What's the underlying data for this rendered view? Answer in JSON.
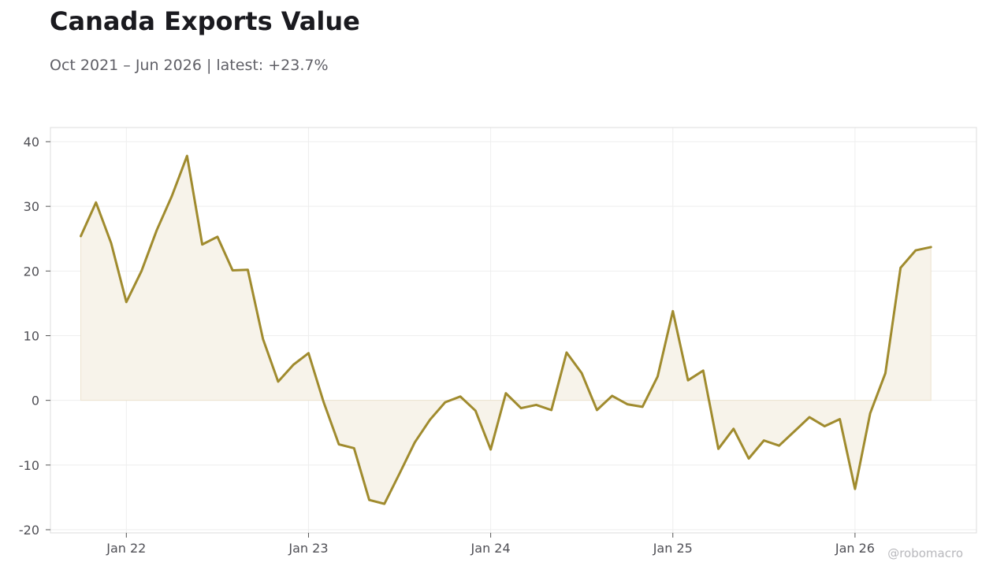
{
  "title": "Canada Exports Value",
  "subtitle": "Oct 2021 – Jun 2026 | latest: +23.7%",
  "watermark": "@robomacro",
  "colors": {
    "line": "#a08b2e",
    "fill": "#f7f3ea",
    "grid": "#eeeeee",
    "frame": "#dddddd",
    "tick_text": "#4f4f55"
  },
  "chart_data": {
    "type": "area",
    "title": "Canada Exports Value",
    "subtitle": "Oct 2021 – Jun 2026 | latest: +23.7%",
    "xlabel": "",
    "ylabel": "",
    "grid": true,
    "ylim": [
      -20,
      40
    ],
    "xlim": [
      "2021-08",
      "2026-09"
    ],
    "y_ticks": [
      -20,
      -10,
      0,
      10,
      20,
      30,
      40
    ],
    "x_ticks": [
      {
        "date": "2022-01",
        "label": "Jan 22"
      },
      {
        "date": "2023-01",
        "label": "Jan 23"
      },
      {
        "date": "2024-01",
        "label": "Jan 24"
      },
      {
        "date": "2025-01",
        "label": "Jan 25"
      },
      {
        "date": "2026-01",
        "label": "Jan 26"
      }
    ],
    "series": [
      {
        "x": [
          "2021-10",
          "2021-11",
          "2021-12",
          "2022-01",
          "2022-02",
          "2022-03",
          "2022-04",
          "2022-05",
          "2022-06",
          "2022-07",
          "2022-08",
          "2022-09",
          "2022-10",
          "2022-11",
          "2022-12",
          "2023-01",
          "2023-02",
          "2023-03",
          "2023-04",
          "2023-05",
          "2023-06",
          "2023-07",
          "2023-08",
          "2023-09",
          "2023-10",
          "2023-11",
          "2023-12",
          "2024-01",
          "2024-02",
          "2024-03",
          "2024-04",
          "2024-05",
          "2024-06",
          "2024-07",
          "2024-08",
          "2024-09",
          "2024-10",
          "2024-11",
          "2024-12",
          "2025-01",
          "2025-02",
          "2025-03",
          "2025-04",
          "2025-05",
          "2025-06",
          "2025-07",
          "2025-08",
          "2025-09",
          "2025-10",
          "2025-11",
          "2025-12",
          "2026-01",
          "2026-02",
          "2026-03",
          "2026-04",
          "2026-05",
          "2026-06"
        ],
        "values": [
          25.4,
          30.6,
          24.3,
          15.2,
          20.0,
          26.3,
          31.6,
          37.8,
          24.1,
          25.3,
          20.1,
          20.2,
          9.5,
          2.9,
          5.5,
          7.3,
          -0.3,
          -6.8,
          -7.4,
          -15.4,
          -16.0,
          -11.3,
          -6.5,
          -3.0,
          -0.3,
          0.6,
          -1.6,
          -7.6,
          1.1,
          -1.2,
          -0.7,
          -1.5,
          7.4,
          4.2,
          -1.5,
          0.7,
          -0.6,
          -1.0,
          3.7,
          13.8,
          3.1,
          4.6,
          -7.5,
          -4.4,
          -9.0,
          -6.2,
          -7.0,
          -4.8,
          -2.6,
          -4.0,
          -2.9,
          -13.7,
          -2.0,
          4.2,
          20.5,
          23.2,
          23.7
        ]
      }
    ]
  }
}
